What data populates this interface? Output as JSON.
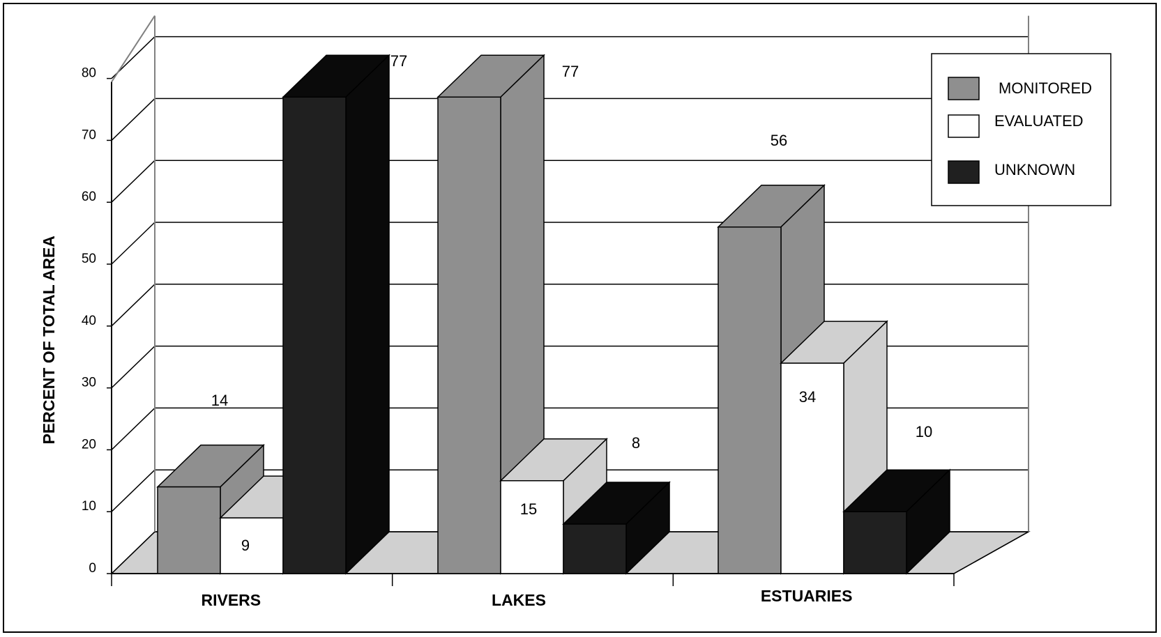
{
  "chart_data": {
    "type": "bar",
    "ylabel": "PERCENT OF TOTAL AREA",
    "ylim": [
      0,
      80
    ],
    "yticks": [
      0,
      10,
      20,
      30,
      40,
      50,
      60,
      70,
      80
    ],
    "categories": [
      "RIVERS",
      "LAKES",
      "ESTUARIES"
    ],
    "series": [
      {
        "name": "MONITORED",
        "values": [
          14,
          77,
          56
        ],
        "color": "#8f8f8f"
      },
      {
        "name": "EVALUATED",
        "values": [
          9,
          15,
          34
        ],
        "color": "#ffffff"
      },
      {
        "name": "UNKNOWN",
        "values": [
          77,
          8,
          10
        ],
        "color": "#202020"
      }
    ],
    "data_labels": [
      [
        "14",
        "9",
        "77"
      ],
      [
        "77",
        "15",
        "8"
      ],
      [
        "56",
        "34",
        "10"
      ]
    ],
    "grid": true,
    "legend": "top-right",
    "style": "3d-column"
  }
}
